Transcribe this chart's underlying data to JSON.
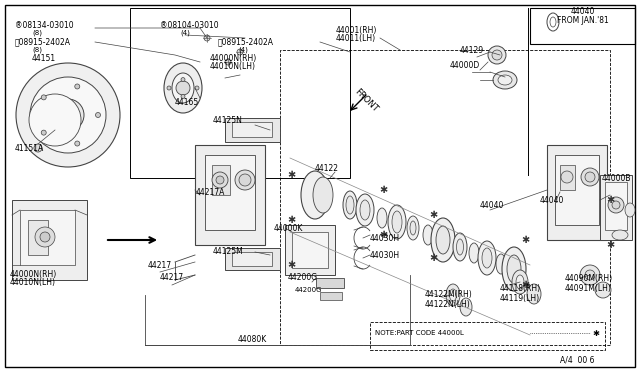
{
  "bg_color": "#ffffff",
  "border_color": "#000000",
  "line_color": "#444444",
  "fig_width": 6.4,
  "fig_height": 3.72,
  "dpi": 100,
  "page_code": "A/4  00 6",
  "note_text": "NOTE:PART CODE 44000L",
  "from_jan81_line1": "44040",
  "from_jan81_line2": "FROM JAN.'81"
}
